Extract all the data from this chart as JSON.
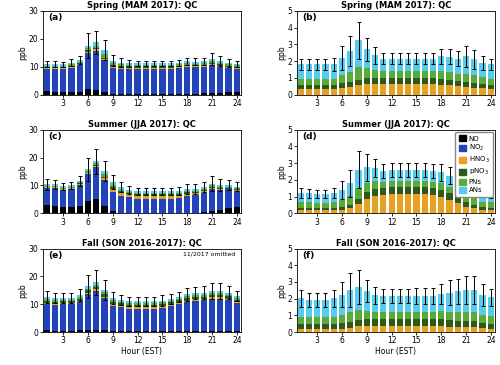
{
  "hours": [
    1,
    2,
    3,
    4,
    5,
    6,
    7,
    8,
    9,
    10,
    11,
    12,
    13,
    14,
    15,
    16,
    17,
    18,
    19,
    20,
    21,
    22,
    23,
    24
  ],
  "colors": {
    "NO": "#000000",
    "NO2": "#2244bb",
    "HNO3": "#e8a020",
    "pNO3": "#2d5a1b",
    "PNs": "#5aaa3a",
    "ANs": "#55ccee"
  },
  "spring_NOy": {
    "NO": [
      1.2,
      0.9,
      0.8,
      0.9,
      1.1,
      2.0,
      1.8,
      0.8,
      0.3,
      0.2,
      0.2,
      0.2,
      0.2,
      0.2,
      0.2,
      0.2,
      0.2,
      0.3,
      0.3,
      0.4,
      0.6,
      0.7,
      0.8,
      1.0
    ],
    "NO2": [
      8.0,
      8.2,
      8.3,
      8.8,
      9.5,
      13.0,
      14.0,
      11.5,
      9.2,
      9.0,
      9.0,
      9.0,
      9.0,
      9.0,
      9.0,
      9.0,
      9.2,
      9.5,
      9.5,
      9.5,
      10.0,
      9.3,
      8.8,
      8.3
    ],
    "HNO3": [
      0.3,
      0.3,
      0.3,
      0.3,
      0.3,
      0.4,
      0.4,
      0.5,
      0.5,
      0.5,
      0.5,
      0.5,
      0.5,
      0.5,
      0.5,
      0.5,
      0.5,
      0.5,
      0.4,
      0.4,
      0.4,
      0.4,
      0.3,
      0.3
    ],
    "pNO3": [
      0.4,
      0.4,
      0.4,
      0.4,
      0.4,
      0.5,
      0.5,
      0.5,
      0.5,
      0.5,
      0.4,
      0.4,
      0.4,
      0.4,
      0.4,
      0.4,
      0.4,
      0.4,
      0.4,
      0.4,
      0.4,
      0.4,
      0.4,
      0.4
    ],
    "PNs": [
      0.5,
      0.5,
      0.5,
      0.5,
      0.5,
      0.7,
      0.9,
      1.1,
      0.7,
      0.6,
      0.5,
      0.5,
      0.5,
      0.5,
      0.5,
      0.5,
      0.5,
      0.5,
      0.5,
      0.5,
      0.6,
      0.6,
      0.5,
      0.5
    ],
    "ANs": [
      0.6,
      0.6,
      0.6,
      0.6,
      0.6,
      0.9,
      1.1,
      1.6,
      0.9,
      0.7,
      0.6,
      0.6,
      0.6,
      0.6,
      0.6,
      0.6,
      0.6,
      0.7,
      0.7,
      0.7,
      0.8,
      0.7,
      0.6,
      0.6
    ],
    "err": [
      1.2,
      1.0,
      0.9,
      1.1,
      1.5,
      4.5,
      4.0,
      3.5,
      2.0,
      1.5,
      1.2,
      1.0,
      1.0,
      1.0,
      1.0,
      1.0,
      1.0,
      1.2,
      1.2,
      1.2,
      2.2,
      1.8,
      1.4,
      1.1
    ]
  },
  "spring_NOz": {
    "HNO3": [
      0.35,
      0.35,
      0.35,
      0.35,
      0.35,
      0.4,
      0.45,
      0.55,
      0.65,
      0.65,
      0.65,
      0.65,
      0.65,
      0.65,
      0.65,
      0.65,
      0.65,
      0.6,
      0.55,
      0.5,
      0.45,
      0.4,
      0.38,
      0.35
    ],
    "pNO3": [
      0.25,
      0.25,
      0.25,
      0.25,
      0.25,
      0.3,
      0.3,
      0.35,
      0.35,
      0.35,
      0.35,
      0.35,
      0.35,
      0.35,
      0.35,
      0.35,
      0.35,
      0.35,
      0.35,
      0.3,
      0.3,
      0.3,
      0.28,
      0.25
    ],
    "PNs": [
      0.35,
      0.35,
      0.35,
      0.35,
      0.35,
      0.45,
      0.6,
      0.75,
      0.6,
      0.5,
      0.4,
      0.4,
      0.4,
      0.4,
      0.4,
      0.4,
      0.4,
      0.45,
      0.45,
      0.45,
      0.48,
      0.45,
      0.38,
      0.35
    ],
    "ANs": [
      0.85,
      0.85,
      0.85,
      0.85,
      0.85,
      1.05,
      1.25,
      1.6,
      1.1,
      0.85,
      0.75,
      0.75,
      0.75,
      0.75,
      0.75,
      0.75,
      0.75,
      0.9,
      0.9,
      0.9,
      1.05,
      0.95,
      0.85,
      0.85
    ],
    "err": [
      0.35,
      0.3,
      0.3,
      0.3,
      0.4,
      0.7,
      0.9,
      1.1,
      0.7,
      0.5,
      0.35,
      0.35,
      0.35,
      0.35,
      0.35,
      0.35,
      0.35,
      0.45,
      0.45,
      0.45,
      0.65,
      0.55,
      0.42,
      0.35
    ]
  },
  "summer_NOy": {
    "NO": [
      3.0,
      2.5,
      2.2,
      2.2,
      2.8,
      4.5,
      5.0,
      2.5,
      0.8,
      0.3,
      0.2,
      0.2,
      0.2,
      0.2,
      0.2,
      0.2,
      0.2,
      0.3,
      0.3,
      0.6,
      1.0,
      1.2,
      1.8,
      2.2
    ],
    "NO2": [
      6.0,
      6.5,
      6.2,
      6.5,
      7.5,
      9.5,
      11.5,
      9.5,
      7.0,
      6.0,
      5.5,
      5.0,
      5.0,
      5.0,
      5.0,
      5.0,
      5.2,
      5.8,
      6.2,
      6.8,
      7.8,
      7.2,
      6.8,
      6.0
    ],
    "HNO3": [
      0.3,
      0.3,
      0.3,
      0.3,
      0.3,
      0.35,
      0.4,
      0.7,
      1.0,
      1.1,
      1.1,
      1.1,
      1.1,
      1.1,
      1.1,
      1.1,
      1.0,
      0.9,
      0.7,
      0.5,
      0.4,
      0.4,
      0.3,
      0.3
    ],
    "pNO3": [
      0.2,
      0.2,
      0.2,
      0.2,
      0.2,
      0.25,
      0.3,
      0.4,
      0.5,
      0.5,
      0.5,
      0.5,
      0.5,
      0.5,
      0.5,
      0.5,
      0.5,
      0.5,
      0.5,
      0.4,
      0.3,
      0.3,
      0.2,
      0.2
    ],
    "PNs": [
      0.4,
      0.4,
      0.35,
      0.35,
      0.4,
      0.5,
      0.7,
      0.9,
      0.8,
      0.6,
      0.5,
      0.5,
      0.5,
      0.5,
      0.5,
      0.5,
      0.5,
      0.5,
      0.5,
      0.5,
      0.5,
      0.5,
      0.4,
      0.4
    ],
    "ANs": [
      0.5,
      0.5,
      0.45,
      0.45,
      0.5,
      0.65,
      0.85,
      1.2,
      1.0,
      0.8,
      0.65,
      0.65,
      0.65,
      0.65,
      0.65,
      0.65,
      0.65,
      0.65,
      0.65,
      0.65,
      0.65,
      0.65,
      0.55,
      0.5
    ],
    "err": [
      2.0,
      1.5,
      1.2,
      1.4,
      1.8,
      4.0,
      4.5,
      3.5,
      2.5,
      1.8,
      1.4,
      1.2,
      1.2,
      1.2,
      1.2,
      1.2,
      1.4,
      1.8,
      1.8,
      1.8,
      2.8,
      2.2,
      1.8,
      1.5
    ]
  },
  "summer_NOz": {
    "HNO3": [
      0.2,
      0.2,
      0.2,
      0.2,
      0.2,
      0.22,
      0.3,
      0.55,
      0.85,
      1.05,
      1.1,
      1.15,
      1.15,
      1.15,
      1.15,
      1.15,
      1.1,
      1.0,
      0.8,
      0.6,
      0.4,
      0.3,
      0.22,
      0.2
    ],
    "pNO3": [
      0.15,
      0.15,
      0.15,
      0.15,
      0.15,
      0.18,
      0.22,
      0.32,
      0.4,
      0.42,
      0.42,
      0.42,
      0.42,
      0.42,
      0.42,
      0.42,
      0.42,
      0.42,
      0.42,
      0.35,
      0.25,
      0.22,
      0.18,
      0.15
    ],
    "PNs": [
      0.3,
      0.3,
      0.28,
      0.28,
      0.3,
      0.38,
      0.5,
      0.65,
      0.55,
      0.45,
      0.38,
      0.38,
      0.38,
      0.38,
      0.38,
      0.38,
      0.38,
      0.38,
      0.38,
      0.38,
      0.38,
      0.38,
      0.3,
      0.3
    ],
    "ANs": [
      0.55,
      0.55,
      0.52,
      0.52,
      0.55,
      0.62,
      0.78,
      1.08,
      0.95,
      0.78,
      0.65,
      0.65,
      0.65,
      0.65,
      0.65,
      0.65,
      0.65,
      0.65,
      0.65,
      0.65,
      0.65,
      0.65,
      0.58,
      0.55
    ],
    "err": [
      0.3,
      0.28,
      0.25,
      0.25,
      0.3,
      0.55,
      0.8,
      1.1,
      0.8,
      0.55,
      0.42,
      0.42,
      0.42,
      0.42,
      0.42,
      0.42,
      0.42,
      0.52,
      0.52,
      0.45,
      0.42,
      0.42,
      0.32,
      0.3
    ]
  },
  "fall_NOy": {
    "NO": [
      0.6,
      0.5,
      0.5,
      0.5,
      0.6,
      0.9,
      0.9,
      0.6,
      0.3,
      0.25,
      0.25,
      0.25,
      0.25,
      0.25,
      0.25,
      0.25,
      0.3,
      0.35,
      0.35,
      0.45,
      0.55,
      0.55,
      0.55,
      0.55
    ],
    "NO2": [
      9.5,
      9.2,
      9.5,
      9.5,
      10.2,
      12.8,
      14.0,
      11.5,
      9.2,
      8.8,
      8.2,
      8.2,
      8.2,
      8.2,
      8.5,
      9.0,
      9.8,
      10.5,
      11.0,
      11.0,
      11.5,
      11.5,
      11.0,
      9.8
    ],
    "HNO3": [
      0.3,
      0.3,
      0.3,
      0.3,
      0.3,
      0.35,
      0.4,
      0.5,
      0.5,
      0.5,
      0.5,
      0.5,
      0.5,
      0.5,
      0.5,
      0.5,
      0.5,
      0.5,
      0.4,
      0.4,
      0.4,
      0.4,
      0.35,
      0.3
    ],
    "pNO3": [
      0.9,
      0.9,
      0.9,
      0.9,
      0.9,
      0.95,
      0.95,
      0.95,
      0.9,
      0.9,
      0.9,
      0.9,
      0.9,
      0.9,
      0.9,
      0.9,
      0.9,
      0.9,
      0.9,
      0.9,
      0.9,
      0.9,
      0.9,
      0.9
    ],
    "PNs": [
      0.5,
      0.5,
      0.5,
      0.5,
      0.5,
      0.6,
      0.7,
      0.7,
      0.55,
      0.5,
      0.5,
      0.5,
      0.5,
      0.5,
      0.5,
      0.5,
      0.5,
      0.55,
      0.55,
      0.6,
      0.65,
      0.65,
      0.6,
      0.55
    ],
    "ANs": [
      0.7,
      0.7,
      0.7,
      0.7,
      0.7,
      0.8,
      0.9,
      0.9,
      0.75,
      0.7,
      0.7,
      0.7,
      0.7,
      0.7,
      0.7,
      0.7,
      0.7,
      0.75,
      0.8,
      0.85,
      0.85,
      0.85,
      0.8,
      0.75
    ],
    "err": [
      2.2,
      1.8,
      1.8,
      1.8,
      2.2,
      4.0,
      4.5,
      3.5,
      2.2,
      1.8,
      1.5,
      1.5,
      1.5,
      1.5,
      1.8,
      1.8,
      1.8,
      2.2,
      2.2,
      2.2,
      2.8,
      2.8,
      2.2,
      1.8
    ]
  },
  "fall_NOz": {
    "HNO3": [
      0.18,
      0.18,
      0.18,
      0.18,
      0.18,
      0.2,
      0.25,
      0.35,
      0.38,
      0.38,
      0.38,
      0.38,
      0.38,
      0.38,
      0.38,
      0.38,
      0.38,
      0.38,
      0.32,
      0.3,
      0.28,
      0.28,
      0.22,
      0.2
    ],
    "pNO3": [
      0.3,
      0.3,
      0.3,
      0.3,
      0.3,
      0.32,
      0.35,
      0.38,
      0.38,
      0.38,
      0.38,
      0.38,
      0.38,
      0.38,
      0.38,
      0.38,
      0.38,
      0.38,
      0.38,
      0.38,
      0.38,
      0.38,
      0.32,
      0.3
    ],
    "PNs": [
      0.45,
      0.45,
      0.45,
      0.45,
      0.45,
      0.52,
      0.58,
      0.58,
      0.5,
      0.45,
      0.45,
      0.45,
      0.45,
      0.45,
      0.45,
      0.45,
      0.45,
      0.5,
      0.52,
      0.55,
      0.55,
      0.55,
      0.5,
      0.48
    ],
    "ANs": [
      1.1,
      1.0,
      1.0,
      1.0,
      1.1,
      1.2,
      1.35,
      1.4,
      1.2,
      1.0,
      0.95,
      0.95,
      0.95,
      0.95,
      0.95,
      0.95,
      0.95,
      1.0,
      1.15,
      1.2,
      1.3,
      1.3,
      1.2,
      1.1
    ],
    "err": [
      0.5,
      0.4,
      0.4,
      0.4,
      0.5,
      0.75,
      1.0,
      1.0,
      0.65,
      0.5,
      0.4,
      0.4,
      0.4,
      0.4,
      0.5,
      0.5,
      0.5,
      0.6,
      0.75,
      0.75,
      0.85,
      0.85,
      0.65,
      0.52
    ]
  },
  "ylim_NOy": 30,
  "ylim_NOz": 5,
  "bar_width": 0.75
}
